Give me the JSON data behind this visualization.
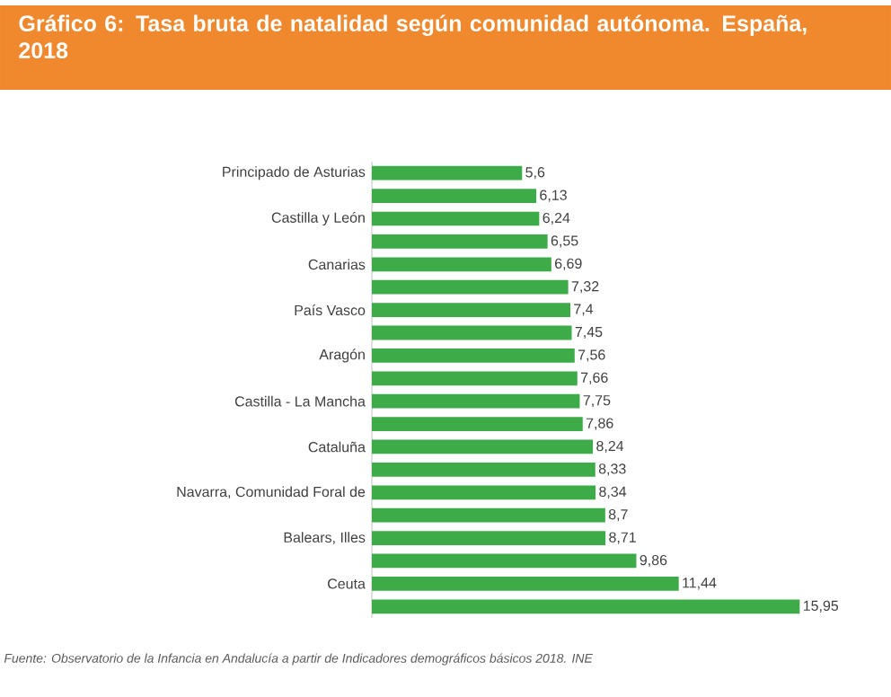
{
  "chart_data": {
    "type": "bar",
    "orientation": "horizontal",
    "title": "Gráfico 6: Tasa bruta de natalidad según comunidad autónoma. España, 2018",
    "categories": [
      "Principado de Asturias",
      null,
      "Castilla y León",
      null,
      "Canarias",
      null,
      "País Vasco",
      null,
      "Aragón",
      null,
      "Castilla - La Mancha",
      null,
      "Cataluña",
      null,
      "Navarra, Comunidad Foral de",
      null,
      "Balears, Illes",
      null,
      "Ceuta",
      null
    ],
    "values": [
      5.6,
      6.13,
      6.24,
      6.55,
      6.69,
      7.32,
      7.4,
      7.45,
      7.56,
      7.66,
      7.75,
      7.86,
      8.24,
      8.33,
      8.34,
      8.7,
      8.71,
      9.86,
      11.44,
      15.95
    ],
    "value_labels": [
      "5,6",
      "6,13",
      "6,24",
      "6,55",
      "6,69",
      "7,32",
      "7,4",
      "7,45",
      "7,56",
      "7,66",
      "7,75",
      "7,86",
      "8,24",
      "8,33",
      "8,34",
      "8,7",
      "8,71",
      "9,86",
      "11,44",
      "15,95"
    ],
    "color": "#3cab48",
    "annotations": [
      "Fuente: Observatorio de la Infancia en Andalucía a partir de Indicadores demográficos básicos 2018. INE"
    ]
  }
}
